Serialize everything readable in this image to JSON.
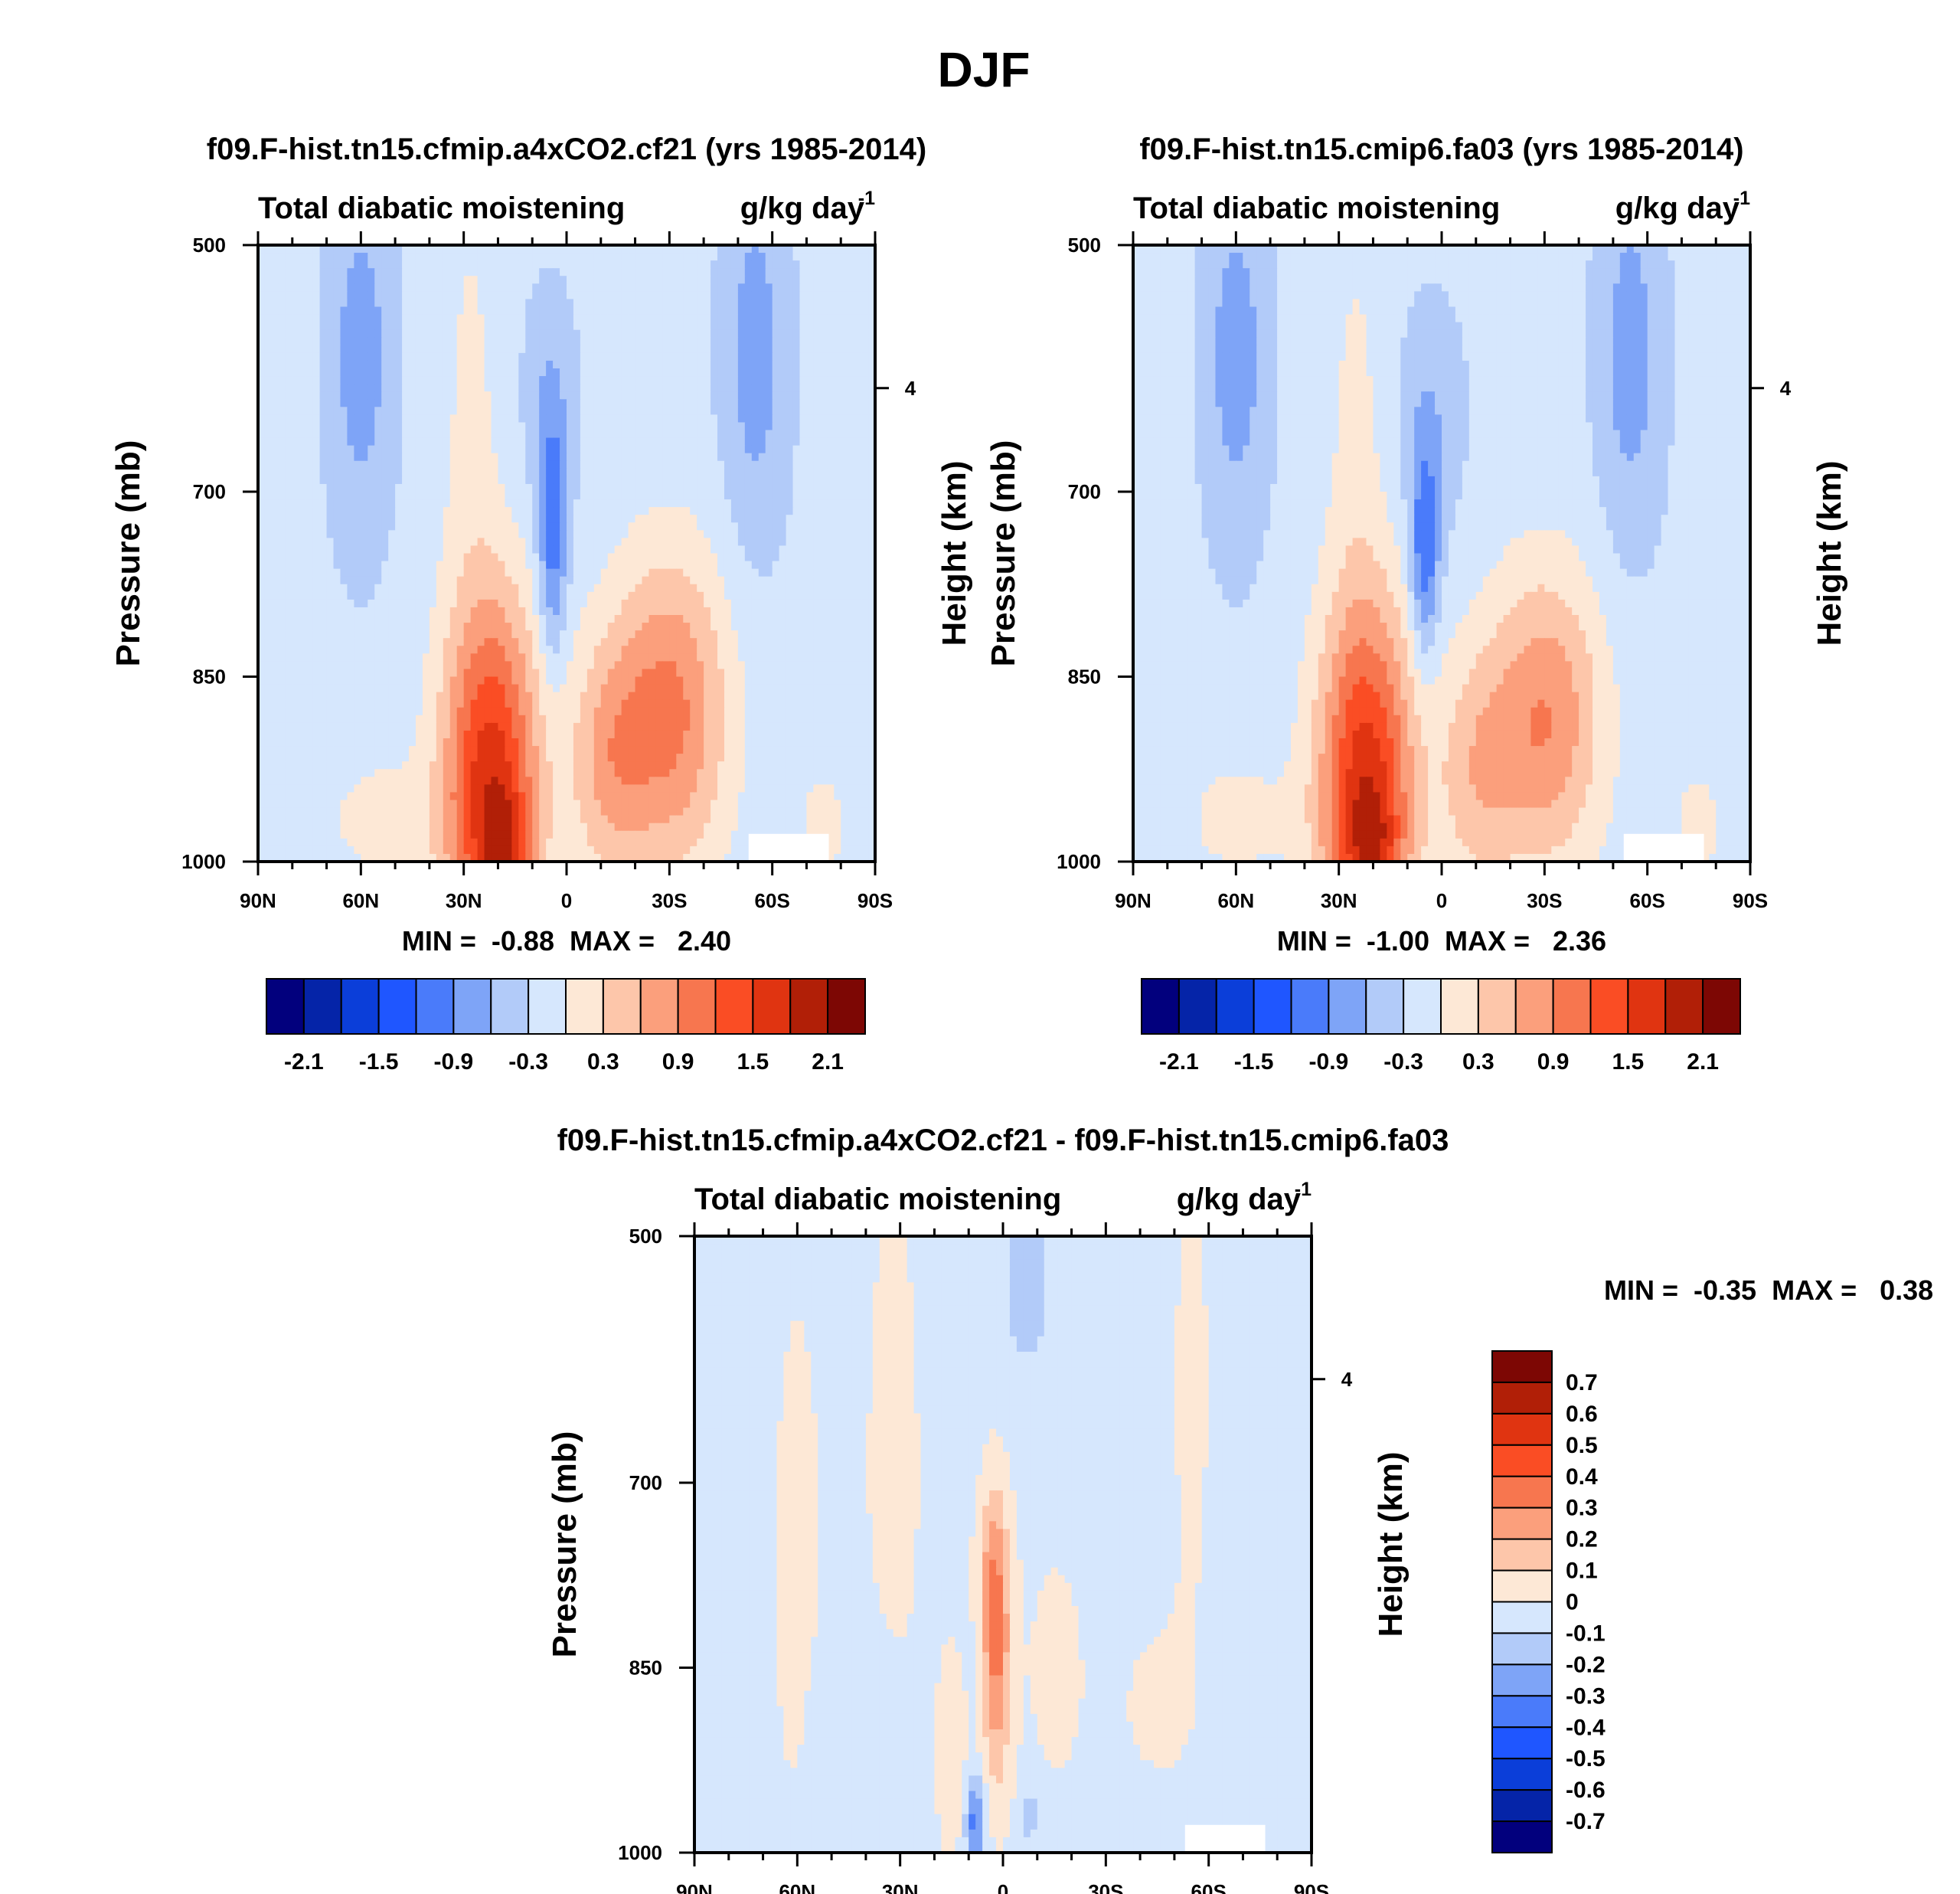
{
  "figure_title": "DJF",
  "chart_data": [
    {
      "type": "heatmap",
      "id": "p1",
      "title": "f09.F-hist.tn15.cfmip.a4xCO2.cf21 (yrs 1985-2014)",
      "left_string": "Total diabatic moistening",
      "right_string": "g/kg day",
      "right_sup": "-1",
      "xlabel": "",
      "ylabel": "Pressure (mb)",
      "y2label": "Height (km)",
      "x_ticks": [
        "90N",
        "60N",
        "30N",
        "0",
        "30S",
        "60S",
        "90S"
      ],
      "x_range": [
        90,
        -90
      ],
      "y_ticks": [
        "500",
        "700",
        "850",
        "1000"
      ],
      "y_range": [
        500,
        1000
      ],
      "y2_ticks": [
        "4"
      ],
      "min_max_text": "MIN =  -0.88  MAX =   2.40",
      "colorbar_labels": [
        "-2.1",
        "-1.5",
        "-0.9",
        "-0.3",
        "0.3",
        "0.9",
        "1.5",
        "2.1"
      ],
      "colorbar_levels": [
        -2.4,
        -2.1,
        -1.8,
        -1.5,
        -1.2,
        -0.9,
        -0.6,
        -0.3,
        0,
        0.3,
        0.6,
        0.9,
        1.2,
        1.5,
        1.8,
        2.1,
        2.4
      ],
      "features": [
        {
          "lat": 60,
          "p": 590,
          "sx": 7,
          "sp": 110,
          "v": -0.55
        },
        {
          "lat": -55,
          "p": 590,
          "sx": 7,
          "sp": 110,
          "v": -0.55
        },
        {
          "lat": 4,
          "p": 740,
          "sx": 3,
          "sp": 70,
          "v": -0.85
        },
        {
          "lat": 5,
          "p": 630,
          "sx": 6,
          "sp": 70,
          "v": -0.35
        },
        {
          "lat": 22,
          "p": 940,
          "sx": 10,
          "sp": 110,
          "v": 1.9
        },
        {
          "lat": 18,
          "p": 985,
          "sx": 5,
          "sp": 30,
          "v": 0.6
        },
        {
          "lat": 28,
          "p": 620,
          "sx": 6,
          "sp": 140,
          "v": 0.25
        },
        {
          "lat": -30,
          "p": 880,
          "sx": 12,
          "sp": 90,
          "v": 1.2
        },
        {
          "lat": -12,
          "p": 920,
          "sx": 8,
          "sp": 70,
          "v": 0.7
        },
        {
          "lat": 55,
          "p": 965,
          "sx": 12,
          "sp": 40,
          "v": 0.3
        },
        {
          "lat": -75,
          "p": 970,
          "sx": 8,
          "sp": 50,
          "v": 0.25
        }
      ]
    },
    {
      "type": "heatmap",
      "id": "p2",
      "title": "f09.F-hist.tn15.cmip6.fa03 (yrs 1985-2014)",
      "left_string": "Total diabatic moistening",
      "right_string": "g/kg day",
      "right_sup": "-1",
      "xlabel": "",
      "ylabel": "Pressure (mb)",
      "y2label": "Height (km)",
      "x_ticks": [
        "90N",
        "60N",
        "30N",
        "0",
        "30S",
        "60S",
        "90S"
      ],
      "x_range": [
        90,
        -90
      ],
      "y_ticks": [
        "500",
        "700",
        "850",
        "1000"
      ],
      "y_range": [
        500,
        1000
      ],
      "y2_ticks": [
        "4"
      ],
      "min_max_text": "MIN =  -1.00  MAX =   2.36",
      "colorbar_labels": [
        "-2.1",
        "-1.5",
        "-0.9",
        "-0.3",
        "0.3",
        "0.9",
        "1.5",
        "2.1"
      ],
      "colorbar_levels": [
        -2.4,
        -2.1,
        -1.8,
        -1.5,
        -1.2,
        -0.9,
        -0.6,
        -0.3,
        0,
        0.3,
        0.6,
        0.9,
        1.2,
        1.5,
        1.8,
        2.1,
        2.4
      ],
      "features": [
        {
          "lat": 60,
          "p": 590,
          "sx": 7,
          "sp": 110,
          "v": -0.55
        },
        {
          "lat": -55,
          "p": 590,
          "sx": 7,
          "sp": 110,
          "v": -0.55
        },
        {
          "lat": 5,
          "p": 750,
          "sx": 3,
          "sp": 60,
          "v": -0.95
        },
        {
          "lat": 3,
          "p": 640,
          "sx": 7,
          "sp": 70,
          "v": -0.35
        },
        {
          "lat": 22,
          "p": 945,
          "sx": 10,
          "sp": 110,
          "v": 1.9
        },
        {
          "lat": 20,
          "p": 985,
          "sx": 5,
          "sp": 30,
          "v": 0.5
        },
        {
          "lat": 25,
          "p": 640,
          "sx": 6,
          "sp": 140,
          "v": 0.25
        },
        {
          "lat": -30,
          "p": 885,
          "sx": 12,
          "sp": 85,
          "v": 1.1
        },
        {
          "lat": -10,
          "p": 930,
          "sx": 8,
          "sp": 70,
          "v": 0.6
        },
        {
          "lat": 60,
          "p": 965,
          "sx": 12,
          "sp": 40,
          "v": 0.3
        },
        {
          "lat": -75,
          "p": 970,
          "sx": 8,
          "sp": 50,
          "v": 0.25
        }
      ]
    },
    {
      "type": "heatmap",
      "id": "p3",
      "title": "f09.F-hist.tn15.cfmip.a4xCO2.cf21 - f09.F-hist.tn15.cmip6.fa03",
      "left_string": "Total diabatic moistening",
      "right_string": "g/kg day",
      "right_sup": "-1",
      "xlabel": "",
      "ylabel": "Pressure (mb)",
      "y2label": "Height (km)",
      "x_ticks": [
        "90N",
        "60N",
        "30N",
        "0",
        "30S",
        "60S",
        "90S"
      ],
      "x_range": [
        90,
        -90
      ],
      "y_ticks": [
        "500",
        "700",
        "850",
        "1000"
      ],
      "y_range": [
        500,
        1000
      ],
      "y2_ticks": [
        "4"
      ],
      "min_max_text": "MIN =  -0.35  MAX =   0.38",
      "colorbar_labels": [
        "0.7",
        "0.6",
        "0.5",
        "0.4",
        "0.3",
        "0.2",
        "0.1",
        "0",
        "-0.1",
        "-0.2",
        "-0.3",
        "-0.4",
        "-0.5",
        "-0.6",
        "-0.7"
      ],
      "colorbar_levels": [
        -0.8,
        -0.7,
        -0.6,
        -0.5,
        -0.4,
        -0.3,
        -0.2,
        -0.1,
        0,
        0.1,
        0.2,
        0.3,
        0.4,
        0.5,
        0.6,
        0.7,
        0.8
      ],
      "features": [
        {
          "lat": 2,
          "p": 830,
          "sx": 3,
          "sp": 80,
          "v": 0.36
        },
        {
          "lat": 4,
          "p": 760,
          "sx": 3,
          "sp": 40,
          "v": 0.1
        },
        {
          "lat": 60,
          "p": 780,
          "sx": 6,
          "sp": 200,
          "v": 0.07
        },
        {
          "lat": 32,
          "p": 700,
          "sx": 8,
          "sp": 250,
          "v": 0.06
        },
        {
          "lat": -15,
          "p": 850,
          "sx": 10,
          "sp": 120,
          "v": 0.05
        },
        {
          "lat": -55,
          "p": 620,
          "sx": 5,
          "sp": 150,
          "v": 0.06
        },
        {
          "lat": -45,
          "p": 880,
          "sx": 10,
          "sp": 70,
          "v": 0.05
        },
        {
          "lat": -7,
          "p": 540,
          "sx": 5,
          "sp": 50,
          "v": -0.12
        },
        {
          "lat": 8,
          "p": 975,
          "sx": 2,
          "sp": 25,
          "v": -0.32
        },
        {
          "lat": -8,
          "p": 970,
          "sx": 2,
          "sp": 20,
          "v": -0.12
        },
        {
          "lat": 42,
          "p": 930,
          "sx": 10,
          "sp": 70,
          "v": -0.07
        },
        {
          "lat": 15,
          "p": 920,
          "sx": 3,
          "sp": 60,
          "v": 0.12
        }
      ]
    }
  ]
}
